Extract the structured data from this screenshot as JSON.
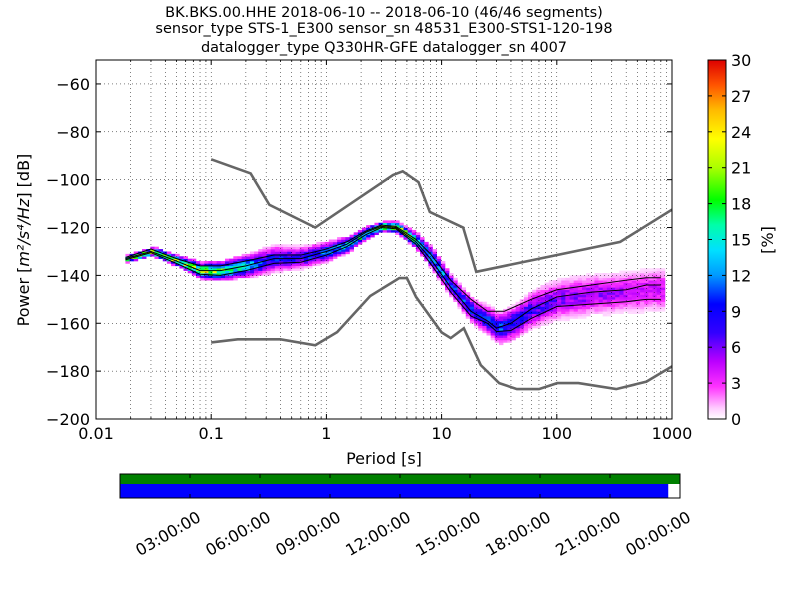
{
  "chart_data": {
    "type": "heatmap",
    "title_lines": [
      "BK.BKS.00.HHE   2018-06-10 -- 2018-06-10  (46/46 segments)",
      "sensor_type STS-1_E300 sensor_sn 48531_E300-STS1-120-198",
      "datalogger_type Q330HR-GFE datalogger_sn 4007"
    ],
    "xlabel": "Period [s]",
    "ylabel_prefix": "Power [",
    "ylabel_units": "m²/s⁴/Hz",
    "ylabel_suffix": "] [dB]",
    "x_scale": "log",
    "xlim": [
      0.01,
      1000
    ],
    "ylim": [
      -200,
      -50
    ],
    "x_ticks": [
      {
        "value": 0.01,
        "label": "0.01"
      },
      {
        "value": 0.1,
        "label": "0.1"
      },
      {
        "value": 1,
        "label": "1"
      },
      {
        "value": 10,
        "label": "10"
      },
      {
        "value": 100,
        "label": "100"
      },
      {
        "value": 1000,
        "label": "1000"
      }
    ],
    "y_ticks": [
      {
        "value": -60,
        "label": "−60"
      },
      {
        "value": -80,
        "label": "−80"
      },
      {
        "value": -100,
        "label": "−100"
      },
      {
        "value": -120,
        "label": "−120"
      },
      {
        "value": -140,
        "label": "−140"
      },
      {
        "value": -160,
        "label": "−160"
      },
      {
        "value": -180,
        "label": "−180"
      },
      {
        "value": -200,
        "label": "−200"
      }
    ],
    "grid": true,
    "colorbar": {
      "label": "[%]",
      "range": [
        0,
        30
      ],
      "ticks": [
        {
          "value": 0,
          "label": "0"
        },
        {
          "value": 3,
          "label": "3"
        },
        {
          "value": 6,
          "label": "6"
        },
        {
          "value": 9,
          "label": "9"
        },
        {
          "value": 12,
          "label": "12"
        },
        {
          "value": 15,
          "label": "15"
        },
        {
          "value": 18,
          "label": "18"
        },
        {
          "value": 21,
          "label": "21"
        },
        {
          "value": 24,
          "label": "24"
        },
        {
          "value": 27,
          "label": "27"
        },
        {
          "value": 30,
          "label": "30"
        }
      ]
    },
    "noise_models": {
      "new_high_noise_model": [
        [
          0.1,
          -91.5
        ],
        [
          0.22,
          -97.4
        ],
        [
          0.32,
          -110.5
        ],
        [
          0.8,
          -120
        ],
        [
          3.8,
          -98
        ],
        [
          4.6,
          -96.5
        ],
        [
          6.3,
          -101
        ],
        [
          7.9,
          -113.5
        ],
        [
          15.4,
          -120
        ],
        [
          20,
          -138.5
        ],
        [
          354.8,
          -126
        ],
        [
          1000,
          -112.5
        ]
      ],
      "new_low_noise_model": [
        [
          0.1,
          -168
        ],
        [
          0.17,
          -166.7
        ],
        [
          0.4,
          -166.7
        ],
        [
          0.8,
          -169.2
        ],
        [
          1.24,
          -163.7
        ],
        [
          2.4,
          -148.6
        ],
        [
          4.3,
          -141.1
        ],
        [
          5,
          -141.1
        ],
        [
          6,
          -149
        ],
        [
          10,
          -163.8
        ],
        [
          12,
          -166.2
        ],
        [
          15.6,
          -162.1
        ],
        [
          21.9,
          -177.5
        ],
        [
          31.6,
          -185
        ],
        [
          45,
          -187.5
        ],
        [
          70,
          -187.5
        ],
        [
          101,
          -185
        ],
        [
          154,
          -185
        ],
        [
          328,
          -187.5
        ],
        [
          600,
          -184.4
        ],
        [
          1000,
          -178
        ]
      ]
    },
    "mode_curve": [
      [
        0.018,
        -133
      ],
      [
        0.03,
        -130
      ],
      [
        0.05,
        -134
      ],
      [
        0.08,
        -138
      ],
      [
        0.12,
        -138
      ],
      [
        0.2,
        -136
      ],
      [
        0.35,
        -133
      ],
      [
        0.6,
        -133
      ],
      [
        1,
        -130
      ],
      [
        1.5,
        -127
      ],
      [
        2.2,
        -122
      ],
      [
        3,
        -119.5
      ],
      [
        4,
        -120
      ],
      [
        6,
        -126
      ],
      [
        8,
        -133
      ],
      [
        12,
        -145
      ],
      [
        18,
        -155
      ],
      [
        25,
        -159
      ],
      [
        30,
        -162
      ],
      [
        40,
        -160
      ],
      [
        60,
        -154
      ],
      [
        100,
        -149
      ],
      [
        200,
        -147
      ],
      [
        400,
        -146
      ],
      [
        600,
        -144
      ],
      [
        800,
        -144
      ]
    ],
    "upper_curve": [
      [
        0.018,
        -132.5
      ],
      [
        0.03,
        -129
      ],
      [
        0.05,
        -133
      ],
      [
        0.08,
        -136
      ],
      [
        0.12,
        -136
      ],
      [
        0.2,
        -134
      ],
      [
        0.35,
        -131.5
      ],
      [
        0.6,
        -131.5
      ],
      [
        1,
        -129
      ],
      [
        1.5,
        -126
      ],
      [
        2.2,
        -121.5
      ],
      [
        3,
        -119
      ],
      [
        4,
        -119.5
      ],
      [
        6,
        -125
      ],
      [
        8,
        -131
      ],
      [
        12,
        -142
      ],
      [
        18,
        -150
      ],
      [
        25,
        -155
      ],
      [
        35,
        -155
      ],
      [
        60,
        -150
      ],
      [
        100,
        -146
      ],
      [
        200,
        -144
      ],
      [
        400,
        -142
      ],
      [
        600,
        -141
      ],
      [
        800,
        -141
      ]
    ],
    "lower_curve": [
      [
        0.018,
        -133.5
      ],
      [
        0.03,
        -130.5
      ],
      [
        0.05,
        -135
      ],
      [
        0.08,
        -139.5
      ],
      [
        0.12,
        -140
      ],
      [
        0.2,
        -138
      ],
      [
        0.35,
        -135
      ],
      [
        0.6,
        -134.5
      ],
      [
        1,
        -131.5
      ],
      [
        1.5,
        -128
      ],
      [
        2.2,
        -123
      ],
      [
        3,
        -120
      ],
      [
        4,
        -120.5
      ],
      [
        6,
        -127
      ],
      [
        8,
        -135
      ],
      [
        12,
        -147
      ],
      [
        18,
        -157
      ],
      [
        25,
        -160
      ],
      [
        30,
        -163.5
      ],
      [
        40,
        -163
      ],
      [
        60,
        -158
      ],
      [
        100,
        -153
      ],
      [
        200,
        -152
      ],
      [
        400,
        -151
      ],
      [
        600,
        -150
      ],
      [
        800,
        -150
      ]
    ],
    "density_band": {
      "center": [
        [
          0.018,
          -133
        ],
        [
          0.03,
          -130
        ],
        [
          0.05,
          -134
        ],
        [
          0.08,
          -138
        ],
        [
          0.12,
          -138
        ],
        [
          0.2,
          -136
        ],
        [
          0.35,
          -133
        ],
        [
          0.6,
          -132.5
        ],
        [
          1,
          -130
        ],
        [
          1.5,
          -127
        ],
        [
          2.2,
          -122
        ],
        [
          3,
          -119.5
        ],
        [
          4,
          -120
        ],
        [
          6,
          -126
        ],
        [
          8,
          -133
        ],
        [
          12,
          -145
        ],
        [
          18,
          -155
        ],
        [
          25,
          -159
        ],
        [
          30,
          -162
        ],
        [
          40,
          -160
        ],
        [
          60,
          -154
        ],
        [
          100,
          -150
        ],
        [
          200,
          -148
        ],
        [
          400,
          -147
        ],
        [
          600,
          -146
        ],
        [
          800,
          -146
        ]
      ],
      "halfwidth": [
        [
          0.018,
          1.5
        ],
        [
          0.05,
          2.5
        ],
        [
          0.1,
          4
        ],
        [
          0.2,
          5
        ],
        [
          0.3,
          6
        ],
        [
          0.6,
          5
        ],
        [
          1,
          4.5
        ],
        [
          2,
          3
        ],
        [
          3,
          2
        ],
        [
          5,
          3
        ],
        [
          8,
          5
        ],
        [
          12,
          5
        ],
        [
          20,
          6
        ],
        [
          30,
          7
        ],
        [
          50,
          8
        ],
        [
          100,
          9
        ],
        [
          200,
          9
        ],
        [
          400,
          9
        ],
        [
          800,
          10
        ]
      ],
      "peak_percent": [
        [
          0.018,
          22
        ],
        [
          0.05,
          20
        ],
        [
          0.1,
          21
        ],
        [
          0.3,
          9
        ],
        [
          0.6,
          8
        ],
        [
          1,
          12
        ],
        [
          2,
          16
        ],
        [
          3,
          24
        ],
        [
          5,
          18
        ],
        [
          8,
          12
        ],
        [
          12,
          10
        ],
        [
          20,
          9
        ],
        [
          30,
          10
        ],
        [
          50,
          8
        ],
        [
          100,
          6
        ],
        [
          300,
          5
        ],
        [
          800,
          4
        ]
      ]
    },
    "time_axis": {
      "ticks": [
        "03:00:00",
        "06:00:00",
        "09:00:00",
        "12:00:00",
        "15:00:00",
        "18:00:00",
        "21:00:00",
        "00:00:00"
      ],
      "data_coverage_fraction": 1.0,
      "psd_coverage_fraction": 0.979,
      "data_color": "#008000",
      "psd_color": "#0000ff"
    },
    "colors": {
      "noise_model": "#666666",
      "statistic_curve": "#000000",
      "grid": "#000000"
    }
  }
}
